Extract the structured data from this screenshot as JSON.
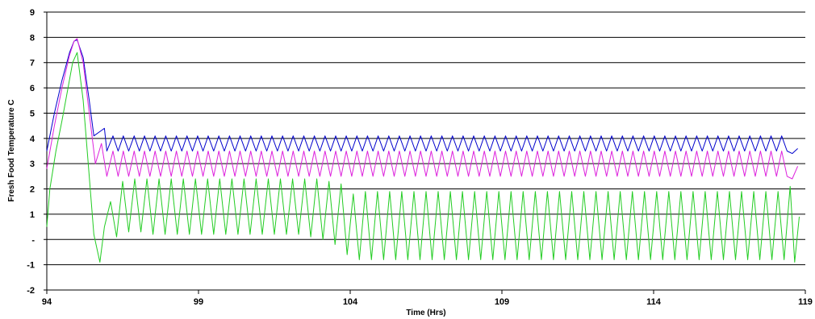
{
  "chart_data": {
    "type": "line",
    "title": "",
    "xlabel": "Time (Hrs)",
    "ylabel": "Fresh Food Temperature C",
    "xlim": [
      94,
      119
    ],
    "ylim": [
      -2,
      9
    ],
    "x_ticks": [
      94,
      99,
      104,
      109,
      114,
      119
    ],
    "x_tick_labels": [
      "94",
      "99",
      "104",
      "109",
      "114",
      "119"
    ],
    "y_ticks": [
      -2,
      -1,
      0,
      1,
      2,
      3,
      4,
      5,
      6,
      7,
      8,
      9
    ],
    "y_tick_labels": [
      "-2",
      "-1",
      "-",
      "1",
      "2",
      "3",
      "4",
      "5",
      "6",
      "7",
      "8",
      "9"
    ],
    "grid": "horizontal",
    "legend": "none",
    "series": [
      {
        "color": "#0000cc",
        "x": [
          94.0,
          94.25,
          94.5,
          94.75,
          94.9,
          95.0,
          95.2,
          95.4,
          95.55,
          95.9,
          95.98,
          96.18,
          96.35,
          96.52,
          96.7,
          96.88,
          97.05,
          97.22,
          97.4,
          97.57,
          97.75,
          97.92,
          98.1,
          98.27,
          98.45,
          98.62,
          98.8,
          98.97,
          99.15,
          99.32,
          99.5,
          99.67,
          99.85,
          100.02,
          100.2,
          100.37,
          100.55,
          100.72,
          100.9,
          101.07,
          101.25,
          101.42,
          101.6,
          101.77,
          101.95,
          102.12,
          102.3,
          102.47,
          102.65,
          102.82,
          103.0,
          103.17,
          103.35,
          103.52,
          103.7,
          103.87,
          104.05,
          104.22,
          104.4,
          104.57,
          104.75,
          104.92,
          105.1,
          105.27,
          105.45,
          105.62,
          105.8,
          105.97,
          106.15,
          106.32,
          106.5,
          106.67,
          106.85,
          107.02,
          107.2,
          107.37,
          107.55,
          107.72,
          107.9,
          108.07,
          108.25,
          108.42,
          108.6,
          108.77,
          108.95,
          109.12,
          109.3,
          109.47,
          109.65,
          109.82,
          110.0,
          110.17,
          110.35,
          110.52,
          110.7,
          110.87,
          111.05,
          111.22,
          111.4,
          111.57,
          111.75,
          111.92,
          112.1,
          112.27,
          112.45,
          112.62,
          112.8,
          112.97,
          113.15,
          113.32,
          113.5,
          113.67,
          113.85,
          114.02,
          114.2,
          114.37,
          114.55,
          114.72,
          114.9,
          115.07,
          115.25,
          115.42,
          115.6,
          115.77,
          115.95,
          116.12,
          116.3,
          116.47,
          116.65,
          116.82,
          117.0,
          117.17,
          117.35,
          117.52,
          117.7,
          117.87,
          118.05,
          118.22,
          118.4,
          118.57,
          118.75
        ],
        "y": [
          3.5,
          5.0,
          6.3,
          7.4,
          7.85,
          7.9,
          7.2,
          5.5,
          4.1,
          4.4,
          3.5,
          4.1,
          3.5,
          4.1,
          3.5,
          4.1,
          3.5,
          4.1,
          3.5,
          4.1,
          3.5,
          4.1,
          3.5,
          4.1,
          3.5,
          4.1,
          3.5,
          4.1,
          3.5,
          4.1,
          3.5,
          4.1,
          3.5,
          4.1,
          3.5,
          4.1,
          3.5,
          4.1,
          3.5,
          4.1,
          3.5,
          4.1,
          3.5,
          4.1,
          3.5,
          4.1,
          3.5,
          4.1,
          3.5,
          4.1,
          3.5,
          4.1,
          3.5,
          4.1,
          3.5,
          4.1,
          3.5,
          4.1,
          3.5,
          4.1,
          3.5,
          4.1,
          3.5,
          4.1,
          3.5,
          4.1,
          3.5,
          4.1,
          3.5,
          4.1,
          3.5,
          4.1,
          3.5,
          4.1,
          3.5,
          4.1,
          3.5,
          4.1,
          3.5,
          4.1,
          3.5,
          4.1,
          3.5,
          4.1,
          3.5,
          4.1,
          3.5,
          4.1,
          3.5,
          4.1,
          3.5,
          4.1,
          3.5,
          4.1,
          3.5,
          4.1,
          3.5,
          4.1,
          3.5,
          4.1,
          3.5,
          4.1,
          3.5,
          4.1,
          3.5,
          4.1,
          3.5,
          4.1,
          3.5,
          4.1,
          3.5,
          4.1,
          3.5,
          4.1,
          3.5,
          4.1,
          3.5,
          4.1,
          3.5,
          4.1,
          3.5,
          4.1,
          3.5,
          4.1,
          3.5,
          4.1,
          3.5,
          4.1,
          3.5,
          4.1,
          3.5,
          4.1,
          3.5,
          4.1,
          3.5,
          4.1,
          3.5,
          4.1,
          3.5,
          3.4,
          3.6
        ]
      },
      {
        "color": "#dd22dd",
        "x": [
          94.0,
          94.25,
          94.5,
          94.75,
          94.9,
          95.0,
          95.2,
          95.4,
          95.6,
          95.8,
          95.98,
          96.18,
          96.35,
          96.52,
          96.7,
          96.88,
          97.05,
          97.22,
          97.4,
          97.57,
          97.75,
          97.92,
          98.1,
          98.27,
          98.45,
          98.62,
          98.8,
          98.97,
          99.15,
          99.32,
          99.5,
          99.67,
          99.85,
          100.02,
          100.2,
          100.37,
          100.55,
          100.72,
          100.9,
          101.07,
          101.25,
          101.42,
          101.6,
          101.77,
          101.95,
          102.12,
          102.3,
          102.47,
          102.65,
          102.82,
          103.0,
          103.17,
          103.35,
          103.52,
          103.7,
          103.87,
          104.05,
          104.22,
          104.4,
          104.57,
          104.75,
          104.92,
          105.1,
          105.27,
          105.45,
          105.62,
          105.8,
          105.97,
          106.15,
          106.32,
          106.5,
          106.67,
          106.85,
          107.02,
          107.2,
          107.37,
          107.55,
          107.72,
          107.9,
          108.07,
          108.25,
          108.42,
          108.6,
          108.77,
          108.95,
          109.12,
          109.3,
          109.47,
          109.65,
          109.82,
          110.0,
          110.17,
          110.35,
          110.52,
          110.7,
          110.87,
          111.05,
          111.22,
          111.4,
          111.57,
          111.75,
          111.92,
          112.1,
          112.27,
          112.45,
          112.62,
          112.8,
          112.97,
          113.15,
          113.32,
          113.5,
          113.67,
          113.85,
          114.02,
          114.2,
          114.37,
          114.55,
          114.72,
          114.9,
          115.07,
          115.25,
          115.42,
          115.6,
          115.77,
          115.95,
          116.12,
          116.3,
          116.47,
          116.65,
          116.82,
          117.0,
          117.17,
          117.35,
          117.52,
          117.7,
          117.87,
          118.05,
          118.22,
          118.4,
          118.57,
          118.75
        ],
        "y": [
          2.8,
          4.5,
          6.0,
          7.3,
          7.85,
          7.95,
          7.0,
          5.0,
          3.0,
          3.8,
          2.5,
          3.5,
          2.5,
          3.5,
          2.5,
          3.5,
          2.5,
          3.5,
          2.5,
          3.5,
          2.5,
          3.5,
          2.5,
          3.5,
          2.5,
          3.5,
          2.5,
          3.5,
          2.5,
          3.5,
          2.5,
          3.5,
          2.5,
          3.5,
          2.5,
          3.5,
          2.5,
          3.5,
          2.5,
          3.5,
          2.5,
          3.5,
          2.5,
          3.5,
          2.5,
          3.5,
          2.5,
          3.5,
          2.5,
          3.5,
          2.5,
          3.5,
          2.5,
          3.5,
          2.5,
          3.5,
          2.5,
          3.5,
          2.5,
          3.5,
          2.5,
          3.5,
          2.5,
          3.5,
          2.5,
          3.5,
          2.5,
          3.5,
          2.5,
          3.5,
          2.5,
          3.5,
          2.5,
          3.5,
          2.5,
          3.5,
          2.5,
          3.5,
          2.5,
          3.5,
          2.5,
          3.5,
          2.5,
          3.5,
          2.5,
          3.5,
          2.5,
          3.5,
          2.5,
          3.5,
          2.5,
          3.5,
          2.5,
          3.5,
          2.5,
          3.5,
          2.5,
          3.5,
          2.5,
          3.5,
          2.5,
          3.5,
          2.5,
          3.5,
          2.5,
          3.5,
          2.5,
          3.5,
          2.5,
          3.5,
          2.5,
          3.5,
          2.5,
          3.5,
          2.5,
          3.5,
          2.5,
          3.5,
          2.5,
          3.5,
          2.5,
          3.5,
          2.5,
          3.5,
          2.5,
          3.5,
          2.5,
          3.5,
          2.5,
          3.5,
          2.5,
          3.5,
          2.5,
          3.5,
          2.5,
          3.5,
          2.5,
          3.5,
          2.5,
          2.4,
          2.9
        ]
      },
      {
        "color": "#22cc22",
        "x": [
          94.0,
          94.1,
          94.3,
          94.5,
          94.7,
          94.85,
          95.0,
          95.2,
          95.4,
          95.55,
          95.75,
          95.9,
          96.1,
          96.3,
          96.5,
          96.7,
          96.9,
          97.1,
          97.3,
          97.5,
          97.7,
          97.9,
          98.1,
          98.3,
          98.5,
          98.7,
          98.9,
          99.1,
          99.3,
          99.5,
          99.7,
          99.9,
          100.1,
          100.3,
          100.5,
          100.7,
          100.9,
          101.1,
          101.3,
          101.5,
          101.7,
          101.9,
          102.1,
          102.3,
          102.5,
          102.7,
          102.9,
          103.1,
          103.3,
          103.5,
          103.7,
          103.9,
          104.1,
          104.3,
          104.5,
          104.7,
          104.9,
          105.1,
          105.3,
          105.5,
          105.7,
          105.9,
          106.1,
          106.3,
          106.5,
          106.7,
          106.9,
          107.1,
          107.3,
          107.5,
          107.7,
          107.9,
          108.1,
          108.3,
          108.5,
          108.7,
          108.9,
          109.1,
          109.3,
          109.5,
          109.7,
          109.9,
          110.1,
          110.3,
          110.5,
          110.7,
          110.9,
          111.1,
          111.3,
          111.5,
          111.7,
          111.9,
          112.1,
          112.3,
          112.5,
          112.7,
          112.9,
          113.1,
          113.3,
          113.5,
          113.7,
          113.9,
          114.1,
          114.3,
          114.5,
          114.7,
          114.9,
          115.1,
          115.3,
          115.5,
          115.7,
          115.9,
          116.1,
          116.3,
          116.5,
          116.7,
          116.9,
          117.1,
          117.3,
          117.5,
          117.7,
          117.9,
          118.1,
          118.3,
          118.5,
          118.65,
          118.8
        ],
        "y": [
          0.5,
          2.0,
          3.5,
          4.7,
          6.0,
          7.0,
          7.4,
          5.5,
          2.5,
          0.2,
          -0.9,
          0.5,
          1.5,
          0.1,
          2.3,
          0.3,
          2.4,
          0.3,
          2.4,
          0.2,
          2.4,
          0.2,
          2.4,
          0.2,
          2.4,
          0.2,
          2.4,
          0.2,
          2.4,
          0.2,
          2.4,
          0.2,
          2.4,
          0.2,
          2.4,
          0.2,
          2.4,
          0.2,
          2.4,
          0.2,
          2.4,
          0.2,
          2.4,
          0.2,
          2.4,
          0.1,
          2.4,
          0.0,
          2.3,
          -0.2,
          2.2,
          -0.6,
          1.8,
          -0.8,
          1.9,
          -0.8,
          1.9,
          -0.8,
          1.9,
          -0.8,
          1.9,
          -0.8,
          1.9,
          -0.8,
          1.9,
          -0.8,
          1.9,
          -0.8,
          1.9,
          -0.8,
          1.9,
          -0.8,
          1.9,
          -0.8,
          1.9,
          -0.8,
          1.9,
          -0.8,
          1.9,
          -0.8,
          1.9,
          -0.8,
          1.9,
          -0.8,
          1.9,
          -0.8,
          1.9,
          -0.8,
          1.9,
          -0.8,
          1.9,
          -0.8,
          1.9,
          -0.8,
          1.9,
          -0.8,
          1.9,
          -0.8,
          1.9,
          -0.8,
          1.9,
          -0.8,
          1.9,
          -0.8,
          1.9,
          -0.8,
          1.9,
          -0.8,
          1.9,
          -0.8,
          1.9,
          -0.8,
          1.9,
          -0.8,
          1.9,
          -0.8,
          1.9,
          -0.8,
          1.9,
          -0.8,
          1.9,
          -0.8,
          1.9,
          -0.8,
          2.1,
          -0.9,
          0.9
        ]
      }
    ]
  }
}
